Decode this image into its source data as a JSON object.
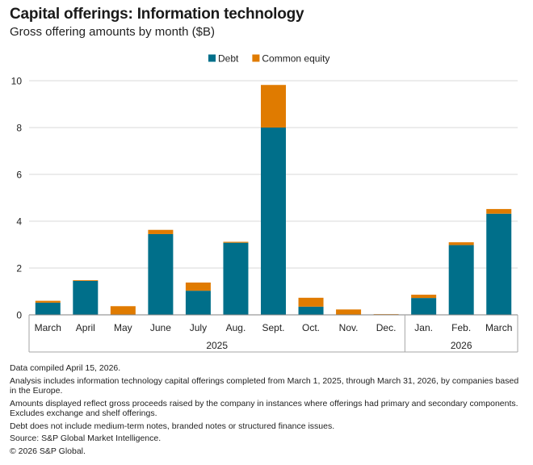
{
  "title": "Capital offerings: Information technology",
  "subtitle": "Gross offering amounts by month ($B)",
  "chart_data": {
    "type": "bar",
    "stacked": true,
    "categories": [
      "March",
      "April",
      "May",
      "June",
      "July",
      "Aug.",
      "Sept.",
      "Oct.",
      "Nov.",
      "Dec.",
      "Jan.",
      "Feb.",
      "March"
    ],
    "year_groups": [
      {
        "label": "2025",
        "count": 10
      },
      {
        "label": "2026",
        "count": 3
      }
    ],
    "series": [
      {
        "name": "Debt",
        "color": "#006f8a",
        "values": [
          0.52,
          1.45,
          0.0,
          3.45,
          1.03,
          3.08,
          8.0,
          0.35,
          0.0,
          0.0,
          0.72,
          2.98,
          4.32
        ]
      },
      {
        "name": "Common equity",
        "color": "#e07b00",
        "values": [
          0.08,
          0.03,
          0.37,
          0.18,
          0.35,
          0.04,
          1.82,
          0.38,
          0.23,
          0.03,
          0.14,
          0.12,
          0.2
        ]
      }
    ],
    "ylim": [
      0,
      10
    ],
    "yticks": [
      0,
      2,
      4,
      6,
      8,
      10
    ],
    "grid": true,
    "legend_position": "top"
  },
  "notes": [
    "Data compiled April 15, 2026.",
    "Analysis includes information technology capital offerings completed from March 1, 2025, through March 31, 2026, by companies based in the Europe.",
    "Amounts displayed reflect gross proceeds raised by the company in instances where offerings had primary and secondary components. Excludes exchange and shelf offerings.",
    "Debt does not include medium-term notes, branded notes or structured finance issues.",
    "Source: S&P Global Market Intelligence.",
    "© 2026 S&P Global."
  ]
}
